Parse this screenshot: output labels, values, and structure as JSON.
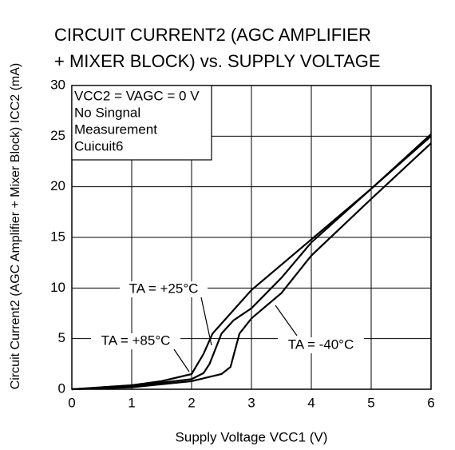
{
  "chart_data": {
    "type": "line",
    "title": [
      "CIRCUIT CURRENT2 (AGC AMPLIFIER",
      "+ MIXER BLOCK) vs. SUPPLY VOLTAGE"
    ],
    "x_label": "Supply Voltage  VCC1 (V)",
    "y_label": "Circuit Current2 (AGC Amplifier + Mixer Block)  ICC2 (mA)",
    "annotations": [
      "VCC2 = VAGC = 0 V",
      "No Singnal",
      "Measurement",
      "Cuicuit6"
    ],
    "xlim": [
      0,
      6
    ],
    "xticks": [
      0,
      1,
      2,
      3,
      4,
      5,
      6
    ],
    "ylim": [
      0,
      30
    ],
    "yticks": [
      0,
      5,
      10,
      15,
      20,
      25,
      30
    ],
    "grid": true,
    "series": [
      {
        "name": "TA = +25°C",
        "color": "#000000",
        "x": [
          0,
          1,
          2,
          2.2,
          2.3,
          2.5,
          2.7,
          3,
          3.5,
          4,
          5,
          6
        ],
        "values": [
          0,
          0.3,
          1.0,
          1.6,
          2.5,
          5.5,
          6.8,
          8,
          11,
          14.5,
          19.8,
          25
        ]
      },
      {
        "name": "TA = +85°C",
        "color": "#000000",
        "x": [
          0,
          1,
          1.5,
          2,
          2.2,
          2.35,
          3,
          4,
          5,
          6
        ],
        "values": [
          0,
          0.4,
          0.8,
          1.5,
          3.5,
          5.5,
          9.8,
          14.8,
          19.8,
          25.2
        ]
      },
      {
        "name": "TA = -40°C",
        "color": "#000000",
        "x": [
          0,
          1,
          2,
          2.5,
          2.65,
          2.8,
          3,
          3.5,
          4,
          5,
          6
        ],
        "values": [
          0,
          0.2,
          0.8,
          1.5,
          2.2,
          5.5,
          7,
          9.5,
          13.2,
          18.8,
          24.3
        ]
      }
    ]
  }
}
